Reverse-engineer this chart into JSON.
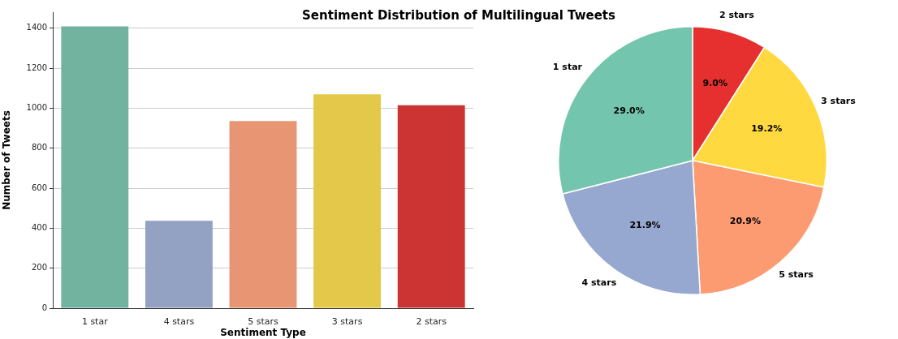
{
  "chart_data": [
    {
      "type": "bar",
      "title": "Sentiment Distribution of Multilingual Tweets",
      "xlabel": "Sentiment Type",
      "ylabel": "Number of Tweets",
      "categories": [
        "1 star",
        "4 stars",
        "5 stars",
        "3 stars",
        "2 stars"
      ],
      "values": [
        1409,
        437,
        936,
        1069,
        1015
      ],
      "colors": [
        "#72b3a0",
        "#93a2c2",
        "#e89574",
        "#e3c84a",
        "#cc3333"
      ],
      "ylim": [
        0,
        1480
      ],
      "yticks": [
        0,
        200,
        400,
        600,
        800,
        1000,
        1200,
        1400
      ],
      "grid": "y"
    },
    {
      "type": "pie",
      "categories": [
        "2 stars",
        "3 stars",
        "5 stars",
        "4 stars",
        "1 star"
      ],
      "values": [
        9.0,
        19.2,
        20.9,
        21.9,
        29.0
      ],
      "value_labels": [
        "9.0%",
        "19.2%",
        "20.9%",
        "21.9%",
        "29.0%"
      ],
      "colors": [
        "#e5302f",
        "#ffd93f",
        "#fc9b72",
        "#96a8d0",
        "#73c6ad"
      ]
    }
  ]
}
